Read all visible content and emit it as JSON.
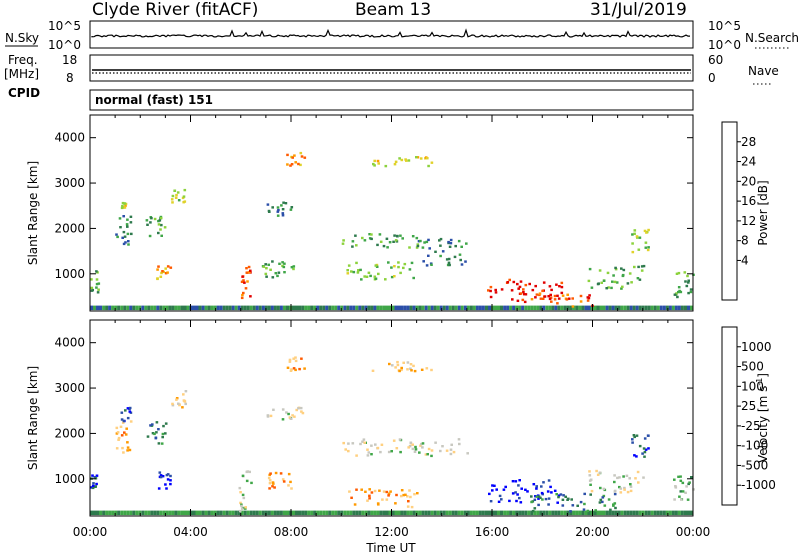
{
  "header": {
    "station": "Clyde River (fitACF)",
    "beam": "Beam 13",
    "date": "31/Jul/2019"
  },
  "top_panels": {
    "nsky_label": "N.Sky",
    "nsearch_label": "N.Search",
    "nsky_ticks": [
      "10^5",
      "10^0"
    ],
    "nsearch_ticks": [
      "10^5",
      "10^0"
    ],
    "freq_label": "Freq.",
    "freq_unit": "[MHz]",
    "freq_ticks": [
      "18",
      "8"
    ],
    "nave_label": "Nave",
    "nave_ticks": [
      "60",
      "0"
    ],
    "cpid_label": "CPID",
    "cpid_value": "normal (fast) 151"
  },
  "chart_data": [
    {
      "type": "heatmap",
      "name": "power",
      "xlabel": "",
      "ylabel": "Slant Range [km]",
      "x_ticks": [
        "00:00",
        "04:00",
        "08:00",
        "12:00",
        "16:00",
        "20:00",
        "00:00"
      ],
      "y_ticks": [
        1000,
        2000,
        3000,
        4000
      ],
      "xlim_hours": [
        0,
        24
      ],
      "ylim_km": [
        180,
        4500
      ],
      "colorbar": {
        "label": "Power [dB]",
        "ticks": [
          "28",
          "24",
          "20",
          "16",
          "12",
          "8",
          "4"
        ],
        "colors": [
          "#0000ff",
          "#2b4fa8",
          "#2e7a4d",
          "#3fa648",
          "#8cd23c",
          "#e0d22a",
          "#ff9a00",
          "#ff5a00",
          "#e10000"
        ]
      },
      "echo_regions": [
        {
          "t0": 0.0,
          "t1": 0.3,
          "r0": 600,
          "r1": 1100,
          "level": 3
        },
        {
          "t0": 1.0,
          "t1": 1.6,
          "r0": 1600,
          "r1": 2300,
          "level": 2
        },
        {
          "t0": 1.2,
          "t1": 1.4,
          "r0": 2400,
          "r1": 2600,
          "level": 5
        },
        {
          "t0": 2.2,
          "t1": 3.0,
          "r0": 1800,
          "r1": 2300,
          "level": 3
        },
        {
          "t0": 2.6,
          "t1": 3.2,
          "r0": 900,
          "r1": 1200,
          "level": 6
        },
        {
          "t0": 3.2,
          "t1": 3.8,
          "r0": 2600,
          "r1": 3000,
          "level": 4
        },
        {
          "t0": 5.9,
          "t1": 6.4,
          "r0": 400,
          "r1": 1200,
          "level": 7
        },
        {
          "t0": 6.8,
          "t1": 8.2,
          "r0": 900,
          "r1": 1300,
          "level": 3
        },
        {
          "t0": 7.0,
          "t1": 8.0,
          "r0": 2300,
          "r1": 2600,
          "level": 2
        },
        {
          "t0": 7.8,
          "t1": 8.5,
          "r0": 3400,
          "r1": 3700,
          "level": 6
        },
        {
          "t0": 10.0,
          "t1": 13.2,
          "r0": 1600,
          "r1": 1900,
          "level": 3
        },
        {
          "t0": 10.2,
          "t1": 13.0,
          "r0": 900,
          "r1": 1300,
          "level": 4
        },
        {
          "t0": 11.2,
          "t1": 13.8,
          "r0": 3400,
          "r1": 3600,
          "level": 5
        },
        {
          "t0": 13.0,
          "t1": 15.0,
          "r0": 1200,
          "r1": 1800,
          "level": 2
        },
        {
          "t0": 15.8,
          "t1": 18.8,
          "r0": 400,
          "r1": 900,
          "level": 8
        },
        {
          "t0": 17.5,
          "t1": 20.0,
          "r0": 300,
          "r1": 600,
          "level": 7
        },
        {
          "t0": 19.8,
          "t1": 22.0,
          "r0": 700,
          "r1": 1200,
          "level": 3
        },
        {
          "t0": 21.5,
          "t1": 22.2,
          "r0": 1500,
          "r1": 2000,
          "level": 4
        },
        {
          "t0": 23.2,
          "t1": 24.0,
          "r0": 500,
          "r1": 1100,
          "level": 3
        }
      ]
    },
    {
      "type": "heatmap",
      "name": "velocity",
      "xlabel": "Time UT",
      "ylabel": "Slant Range [km]",
      "x_ticks": [
        "00:00",
        "04:00",
        "08:00",
        "12:00",
        "16:00",
        "20:00",
        "00:00"
      ],
      "y_ticks": [
        1000,
        2000,
        3000,
        4000
      ],
      "xlim_hours": [
        0,
        24
      ],
      "ylim_km": [
        180,
        4500
      ],
      "colorbar": {
        "label": "Velocity [m s",
        "label_sup": "-1",
        "label_end": "]",
        "ticks": [
          "1000",
          "500",
          "100",
          "25",
          "-25",
          "-100",
          "-500",
          "-1000"
        ],
        "colors": [
          "#ff0000",
          "#ff5a00",
          "#ff9a00",
          "#ffd080",
          "#c8c8c0",
          "#3fa648",
          "#2e7a4d",
          "#2b4fa8",
          "#0000ff"
        ]
      },
      "echo_regions": [
        {
          "t0": 0.0,
          "t1": 0.3,
          "r0": 600,
          "r1": 1100,
          "level": 7
        },
        {
          "t0": 1.0,
          "t1": 1.6,
          "r0": 1600,
          "r1": 2300,
          "level": 2
        },
        {
          "t0": 1.2,
          "t1": 1.6,
          "r0": 2300,
          "r1": 2600,
          "level": 7
        },
        {
          "t0": 2.2,
          "t1": 3.0,
          "r0": 1800,
          "r1": 2300,
          "level": 6
        },
        {
          "t0": 2.6,
          "t1": 3.2,
          "r0": 800,
          "r1": 1200,
          "level": 8
        },
        {
          "t0": 3.2,
          "t1": 3.8,
          "r0": 2600,
          "r1": 3000,
          "level": 3
        },
        {
          "t0": 5.9,
          "t1": 6.4,
          "r0": 300,
          "r1": 1200,
          "level": 4
        },
        {
          "t0": 7.0,
          "t1": 8.0,
          "r0": 800,
          "r1": 1200,
          "level": 2
        },
        {
          "t0": 7.0,
          "t1": 8.5,
          "r0": 2300,
          "r1": 2600,
          "level": 4
        },
        {
          "t0": 7.8,
          "t1": 8.5,
          "r0": 3400,
          "r1": 3700,
          "level": 2
        },
        {
          "t0": 10.0,
          "t1": 15.0,
          "r0": 1500,
          "r1": 1900,
          "level": 4
        },
        {
          "t0": 10.2,
          "t1": 13.0,
          "r0": 400,
          "r1": 800,
          "level": 2
        },
        {
          "t0": 11.2,
          "t1": 13.8,
          "r0": 3400,
          "r1": 3600,
          "level": 3
        },
        {
          "t0": 15.8,
          "t1": 18.8,
          "r0": 500,
          "r1": 1000,
          "level": 8
        },
        {
          "t0": 17.5,
          "t1": 21.0,
          "r0": 300,
          "r1": 700,
          "level": 6
        },
        {
          "t0": 19.8,
          "t1": 22.0,
          "r0": 700,
          "r1": 1200,
          "level": 4
        },
        {
          "t0": 21.5,
          "t1": 22.2,
          "r0": 1500,
          "r1": 2000,
          "level": 7
        },
        {
          "t0": 23.2,
          "t1": 24.0,
          "r0": 500,
          "r1": 1100,
          "level": 5
        }
      ]
    }
  ]
}
